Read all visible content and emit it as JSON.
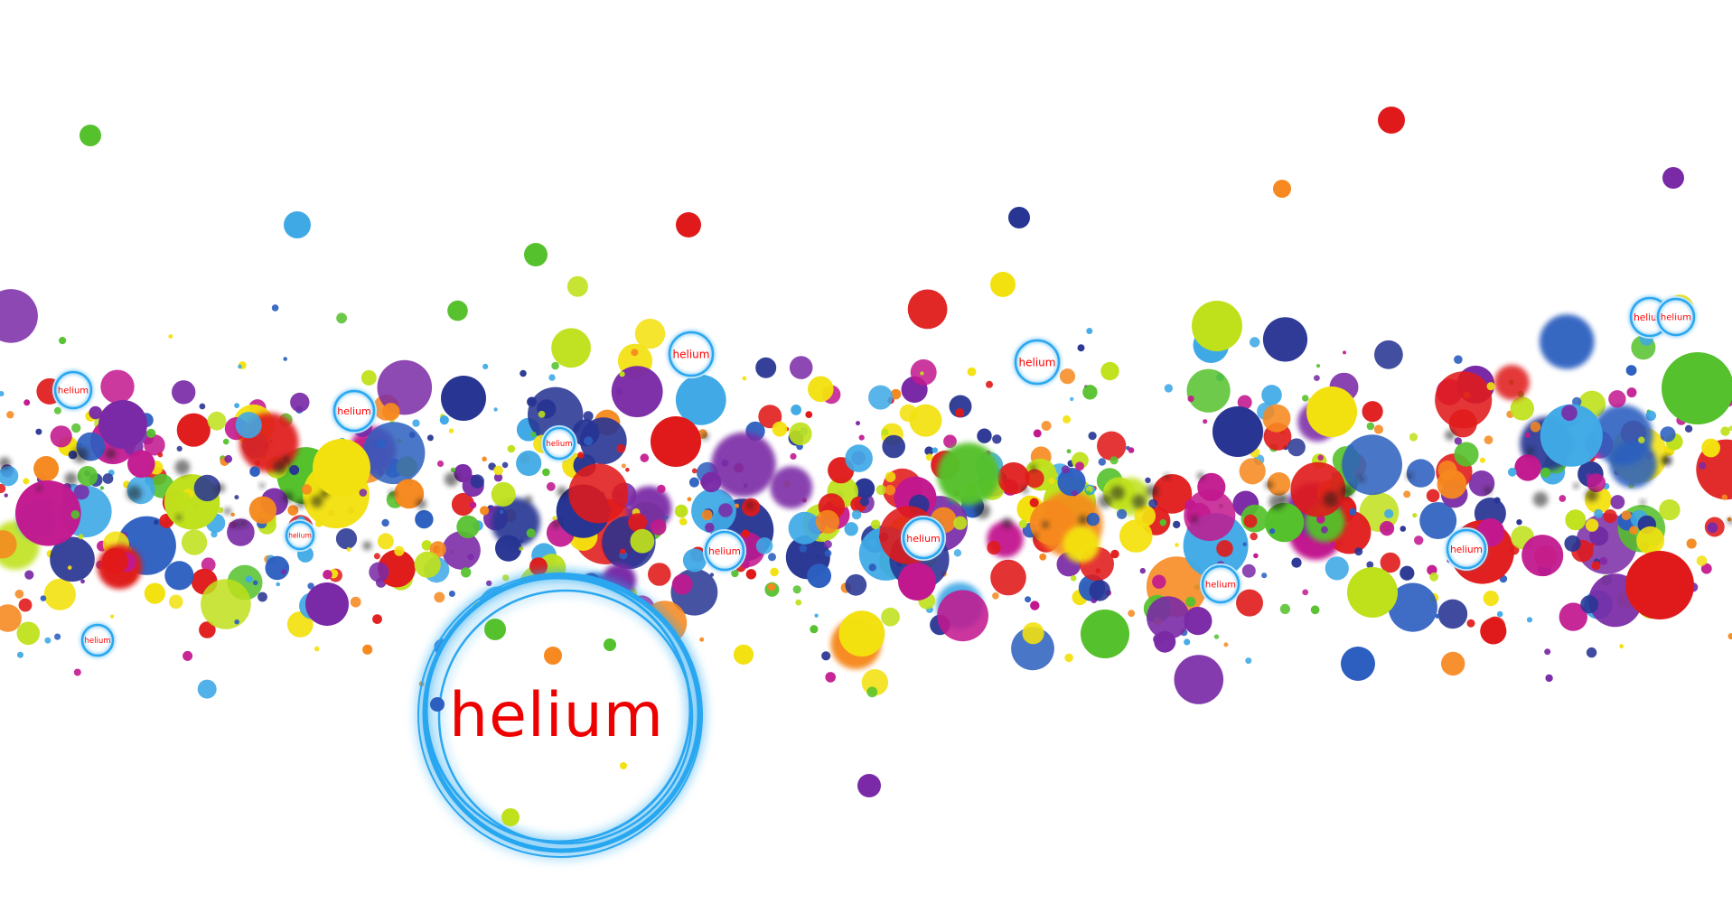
{
  "artwork": {
    "main_word": "helium",
    "small_label": "helium",
    "small_ring_count": 13,
    "palette": {
      "red": "#e01a1a",
      "orange": "#f6891f",
      "yellow": "#f3e10f",
      "lime": "#bfe11b",
      "green": "#55c12c",
      "light_blue": "#3fa9e6",
      "blue": "#2c5fbf",
      "navy": "#283593",
      "purple": "#7a2aa6",
      "magenta": "#c2188f"
    },
    "ring_color": "#2aa7f0",
    "label_color": "#ff0000",
    "background": "#ffffff"
  }
}
